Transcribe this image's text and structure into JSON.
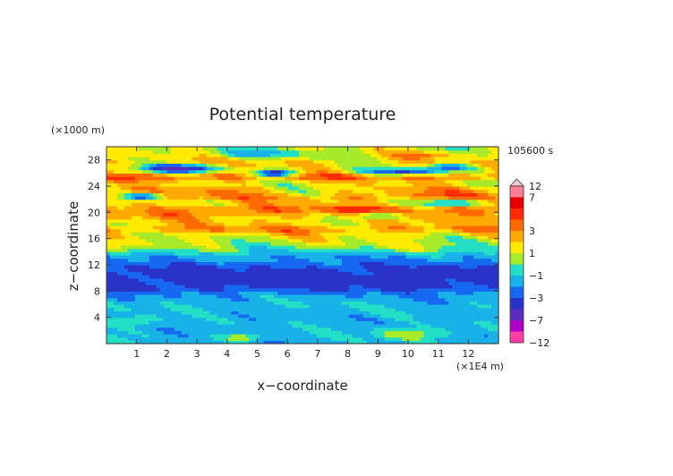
{
  "chart_data": {
    "type": "heatmap",
    "title": "Potential temperature",
    "time_label": "105600 s",
    "xlabel": "x−coordinate",
    "ylabel": "z−coordinate",
    "x_unit": "(×1E4 m)",
    "y_unit": "(×1000 m)",
    "xlim": [
      0,
      13
    ],
    "ylim": [
      0,
      30
    ],
    "x_ticks": [
      "1",
      "2",
      "3",
      "4",
      "5",
      "6",
      "7",
      "8",
      "9",
      "10",
      "11",
      "12"
    ],
    "y_ticks": [
      "4",
      "8",
      "12",
      "16",
      "20",
      "24",
      "28"
    ],
    "colorbar": {
      "labels": [
        "12",
        "7",
        "3",
        "1",
        "−1",
        "−3",
        "−7",
        "−12"
      ],
      "levels": [
        -12,
        -7,
        -5,
        -3,
        -2,
        -1,
        0,
        1,
        2,
        3,
        4,
        5,
        7,
        12
      ],
      "colors": [
        "#ff3fa6",
        "#b000c8",
        "#5a2dbd",
        "#2a33c8",
        "#1668f0",
        "#18b2e8",
        "#22dfc6",
        "#a6ea2a",
        "#ffea00",
        "#ffaa00",
        "#ff6a00",
        "#ff2a00",
        "#e80000",
        "#ff7f95",
        "#ffc8d2"
      ]
    },
    "z_profile": [
      {
        "z": 0,
        "v": -1.4
      },
      {
        "z": 2,
        "v": -1.3
      },
      {
        "z": 4,
        "v": -1.6
      },
      {
        "z": 6,
        "v": -1.2
      },
      {
        "z": 7.5,
        "v": -1.9
      },
      {
        "z": 8.5,
        "v": -3.2
      },
      {
        "z": 10,
        "v": -3.7
      },
      {
        "z": 11.5,
        "v": -3.3
      },
      {
        "z": 12.5,
        "v": -2.2
      },
      {
        "z": 13.5,
        "v": -1.6
      },
      {
        "z": 15,
        "v": 0.6
      },
      {
        "z": 16.5,
        "v": 1.4
      },
      {
        "z": 17.5,
        "v": 3.0
      },
      {
        "z": 18.5,
        "v": 1.6
      },
      {
        "z": 19.5,
        "v": 2.4
      },
      {
        "z": 20.5,
        "v": 3.8
      },
      {
        "z": 21.5,
        "v": 1.7
      },
      {
        "z": 22.5,
        "v": 3.4
      },
      {
        "z": 23.5,
        "v": 2.4
      },
      {
        "z": 24.5,
        "v": 1.3
      },
      {
        "z": 25.5,
        "v": 3.6
      },
      {
        "z": 26.5,
        "v": 1.1
      },
      {
        "z": 27.5,
        "v": 2.0
      },
      {
        "z": 28.5,
        "v": 1.2
      },
      {
        "z": 30,
        "v": 0.7
      }
    ],
    "features": [
      {
        "x": 2.5,
        "z": 26.8,
        "sx": 1.2,
        "sz": 0.6,
        "v": -5.0
      },
      {
        "x": 5.6,
        "z": 26.0,
        "sx": 0.6,
        "sz": 0.5,
        "v": -4.5
      },
      {
        "x": 9.8,
        "z": 26.2,
        "sx": 1.3,
        "sz": 0.5,
        "v": -2.8
      },
      {
        "x": 11.3,
        "z": 27.0,
        "sx": 0.8,
        "sz": 0.5,
        "v": -2.5
      },
      {
        "x": 1.2,
        "z": 22.5,
        "sx": 0.7,
        "sz": 0.5,
        "v": -2.8
      },
      {
        "x": 11.5,
        "z": 21.5,
        "sx": 0.9,
        "sz": 0.5,
        "v": -2.6
      },
      {
        "x": 9.0,
        "z": 19.5,
        "sx": 0.8,
        "sz": 0.5,
        "v": -1.8
      },
      {
        "x": 2.0,
        "z": 25.2,
        "sx": 1.3,
        "sz": 0.5,
        "v": 3.2
      },
      {
        "x": 1.0,
        "z": 20.5,
        "sx": 1.3,
        "sz": 0.6,
        "v": 2.5
      },
      {
        "x": 11.5,
        "z": 19.4,
        "sx": 1.2,
        "sz": 0.6,
        "v": 2.5
      },
      {
        "x": 6.5,
        "z": 23.0,
        "sx": 2.0,
        "sz": 0.8,
        "v": 1.5
      },
      {
        "x": 3.0,
        "z": 5.5,
        "sx": 1.6,
        "sz": 0.5,
        "v": -1.2
      },
      {
        "x": 9.5,
        "z": 4.5,
        "sx": 1.5,
        "sz": 0.6,
        "v": -1.2
      },
      {
        "x": 10.0,
        "z": 1.5,
        "sx": 1.2,
        "sz": 0.8,
        "v": 0.8
      },
      {
        "x": 5.5,
        "z": 2.0,
        "sx": 1.5,
        "sz": 0.8,
        "v": -1.6
      },
      {
        "x": 1.0,
        "z": 3.5,
        "sx": 0.8,
        "sz": 0.8,
        "v": 0.2
      },
      {
        "x": 4.5,
        "z": 1.0,
        "sx": 0.6,
        "sz": 0.6,
        "v": 1.2
      },
      {
        "x": 10.5,
        "z": 28.8,
        "sx": 1.0,
        "sz": 0.5,
        "v": 3.0
      },
      {
        "x": 5.0,
        "z": 29.0,
        "sx": 1.5,
        "sz": 0.6,
        "v": -1.2
      }
    ],
    "grid": false,
    "legend": "colorbar-right"
  }
}
